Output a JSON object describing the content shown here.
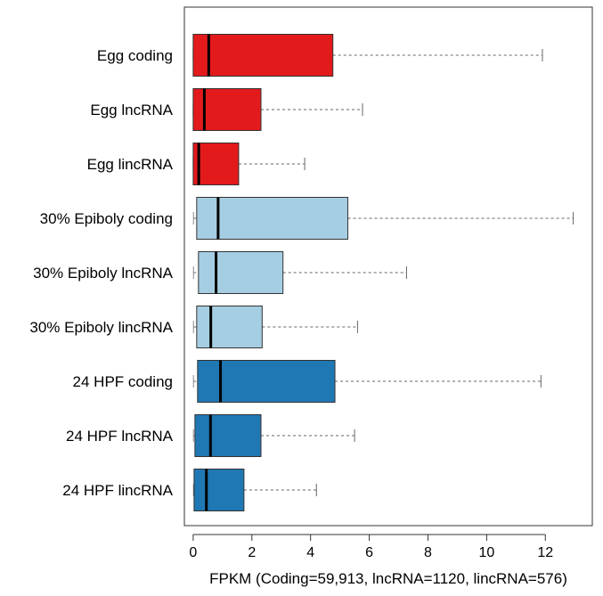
{
  "chart_data": {
    "type": "boxplot",
    "orientation": "horizontal",
    "title": "",
    "xlabel": "FPKM (Coding=59,913, lncRNA=1120, lincRNA=576)",
    "ylabel": "",
    "xlim": [
      -0.3,
      13.6
    ],
    "xticks": [
      "0",
      "2",
      "4",
      "6",
      "8",
      "10",
      "12"
    ],
    "grid": false,
    "legend": "none",
    "colors": {
      "egg": "#e31a1c",
      "epiboly": "#a6cee3",
      "hpf24": "#1f78b4",
      "outline": "#333333",
      "whisker": "#666666",
      "median": "#000000"
    },
    "categories": [
      "Egg coding",
      "Egg lncRNA",
      "Egg lincRNA",
      "30% Epiboly coding",
      "30% Epiboly lncRNA",
      "30% Epiboly lincRNA",
      "24 HPF coding",
      "24 HPF lncRNA",
      "24 HPF lincRNA"
    ],
    "boxes": [
      {
        "group": "egg",
        "min": 0.0,
        "q1": 0.0,
        "median": 0.53,
        "q3": 4.76,
        "max": 11.9
      },
      {
        "group": "egg",
        "min": 0.0,
        "q1": 0.0,
        "median": 0.38,
        "q3": 2.31,
        "max": 5.77
      },
      {
        "group": "egg",
        "min": 0.0,
        "q1": 0.0,
        "median": 0.19,
        "q3": 1.55,
        "max": 3.8
      },
      {
        "group": "epiboly",
        "min": 0.01,
        "q1": 0.12,
        "median": 0.85,
        "q3": 5.27,
        "max": 12.95
      },
      {
        "group": "epiboly",
        "min": 0.01,
        "q1": 0.18,
        "median": 0.78,
        "q3": 3.06,
        "max": 7.27
      },
      {
        "group": "epiboly",
        "min": 0.01,
        "q1": 0.12,
        "median": 0.6,
        "q3": 2.35,
        "max": 5.6
      },
      {
        "group": "hpf24",
        "min": 0.01,
        "q1": 0.15,
        "median": 0.93,
        "q3": 4.83,
        "max": 11.85
      },
      {
        "group": "hpf24",
        "min": 0.01,
        "q1": 0.06,
        "median": 0.59,
        "q3": 2.31,
        "max": 5.5
      },
      {
        "group": "hpf24",
        "min": 0.01,
        "q1": 0.03,
        "median": 0.45,
        "q3": 1.73,
        "max": 4.2
      }
    ]
  }
}
